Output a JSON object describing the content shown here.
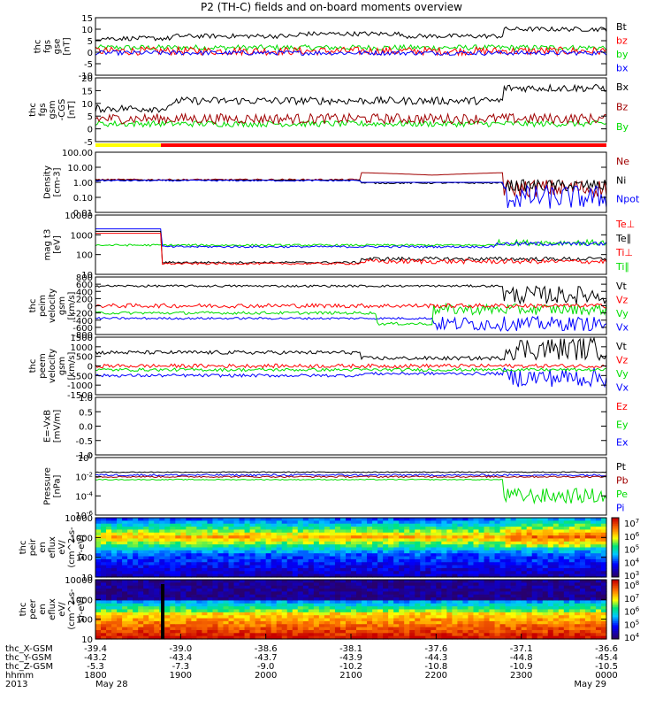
{
  "title": "P2 (TH-C) fields and on-board moments overview",
  "colors": {
    "black": "#000000",
    "red": "#ff0000",
    "green": "#00dd00",
    "blue": "#0000ff",
    "darkred": "#a00000",
    "yellow": "#ffff00"
  },
  "chart_data": [
    {
      "type": "line",
      "panel": "fgs_gse",
      "ylabel": [
        "thc",
        "fgs",
        "gse",
        "[nT]"
      ],
      "ylim": [
        -10,
        15
      ],
      "yticks": [
        "15",
        "10",
        "5",
        "0",
        "-5",
        "-10"
      ],
      "series": [
        {
          "name": "Bt",
          "color": "black"
        },
        {
          "name": "bz",
          "color": "red"
        },
        {
          "name": "by",
          "color": "green"
        },
        {
          "name": "bx",
          "color": "blue"
        }
      ]
    },
    {
      "type": "line",
      "panel": "fgs_gsm",
      "ylabel": [
        "thc",
        "fgs",
        "gsm",
        "-CGS",
        "[nT]"
      ],
      "ylim": [
        -5,
        20
      ],
      "yticks": [
        "20",
        "15",
        "10",
        "5",
        "0",
        "-5"
      ],
      "series": [
        {
          "name": "Bx",
          "color": "black"
        },
        {
          "name": "Bz",
          "color": "darkred"
        },
        {
          "name": "By",
          "color": "green"
        }
      ]
    },
    {
      "type": "line",
      "panel": "density",
      "ylabel": [
        "Density",
        "[cm-3]"
      ],
      "yscale": "log",
      "yticks": [
        "100.00",
        "10.00",
        "1.00",
        "0.10",
        "0.01"
      ],
      "series": [
        {
          "name": "Ne",
          "color": "darkred"
        },
        {
          "name": "Ni",
          "color": "black"
        },
        {
          "name": "Npot",
          "color": "blue"
        }
      ]
    },
    {
      "type": "line",
      "panel": "temperature",
      "ylabel": [
        "mag t3",
        "[eV]"
      ],
      "yscale": "log",
      "yticks": [
        "10000",
        "1000",
        "100",
        "10"
      ],
      "series": [
        {
          "name": "Te⊥",
          "color": "red"
        },
        {
          "name": "Te∥",
          "color": "black"
        },
        {
          "name": "Ti⊥",
          "color": "red"
        },
        {
          "name": "Ti∥",
          "color": "green"
        }
      ]
    },
    {
      "type": "line",
      "panel": "peim_velocity",
      "ylabel": [
        "thc",
        "peim",
        "velocity",
        "gsm",
        "[km/s]"
      ],
      "ylim": [
        -800,
        800
      ],
      "yticks": [
        "800",
        "600",
        "400",
        "200",
        "0",
        "-200",
        "-400",
        "-600",
        "-800"
      ],
      "series": [
        {
          "name": "Vt",
          "color": "black"
        },
        {
          "name": "Vz",
          "color": "red"
        },
        {
          "name": "Vy",
          "color": "green"
        },
        {
          "name": "Vx",
          "color": "blue"
        }
      ]
    },
    {
      "type": "line",
      "panel": "peem_velocity",
      "ylabel": [
        "thc",
        "peem",
        "velocity",
        "gsm",
        "[km/s]"
      ],
      "ylim": [
        -1500,
        1500
      ],
      "yticks": [
        "1500",
        "1000",
        "500",
        "0",
        "-500",
        "-1000",
        "-1500"
      ],
      "series": [
        {
          "name": "Vt",
          "color": "black"
        },
        {
          "name": "Vz",
          "color": "red"
        },
        {
          "name": "Vy",
          "color": "green"
        },
        {
          "name": "Vx",
          "color": "blue"
        }
      ]
    },
    {
      "type": "line",
      "panel": "efield",
      "ylabel": [
        "E=-VxB",
        "[mV/m]"
      ],
      "ylim": [
        -1,
        1
      ],
      "yticks": [
        "1.0",
        "0.5",
        "0.0",
        "-0.5",
        "-1.0"
      ],
      "series": [
        {
          "name": "Ez",
          "color": "red"
        },
        {
          "name": "Ey",
          "color": "green"
        },
        {
          "name": "Ex",
          "color": "blue"
        }
      ]
    },
    {
      "type": "line",
      "panel": "pressure",
      "ylabel": [
        "Pressure",
        "[nPa]"
      ],
      "yscale": "log",
      "yticks": [
        "10^0",
        "10^-2",
        "10^-4",
        "10^-6"
      ],
      "series": [
        {
          "name": "Pt",
          "color": "black"
        },
        {
          "name": "Pb",
          "color": "darkred"
        },
        {
          "name": "Pe",
          "color": "green"
        },
        {
          "name": "Pi",
          "color": "blue"
        }
      ]
    },
    {
      "type": "heatmap",
      "panel": "peir_eflux",
      "ylabel": [
        "thc",
        "peir",
        "en",
        "eflux",
        "eV/",
        "(cm^2-s-",
        "sr-eV)"
      ],
      "yticks": [
        "10000",
        "1000",
        "100",
        "10"
      ],
      "colorbar": [
        "10^7",
        "10^6",
        "10^5",
        "10^4",
        "10^3"
      ]
    },
    {
      "type": "heatmap",
      "panel": "peer_eflux",
      "ylabel": [
        "thc",
        "peer",
        "en",
        "eflux",
        "eV/",
        "(cm^2-s-",
        "sr-eV)"
      ],
      "yticks": [
        "10000",
        "1000",
        "100",
        "10"
      ],
      "colorbar": [
        "10^8",
        "10^7",
        "10^6",
        "10^5",
        "10^4"
      ]
    }
  ],
  "xaxis": {
    "rows": [
      {
        "label": "thc_X-GSM",
        "values": [
          "-39.4",
          "-39.0",
          "-38.6",
          "-38.1",
          "-37.6",
          "-37.1",
          "-36.6"
        ]
      },
      {
        "label": "thc_Y-GSM",
        "values": [
          "-43.2",
          "-43.4",
          "-43.7",
          "-43.9",
          "-44.3",
          "-44.8",
          "-45.4"
        ]
      },
      {
        "label": "thc_Z-GSM",
        "values": [
          "-5.3",
          "-7.3",
          "-9.0",
          "-10.2",
          "-10.8",
          "-10.9",
          "-10.5"
        ]
      },
      {
        "label": "hhmm",
        "values": [
          "1800",
          "1900",
          "2000",
          "2100",
          "2200",
          "2300",
          "0000"
        ]
      }
    ],
    "year": "2013",
    "date_start": "May 28",
    "date_end": "May 29"
  }
}
